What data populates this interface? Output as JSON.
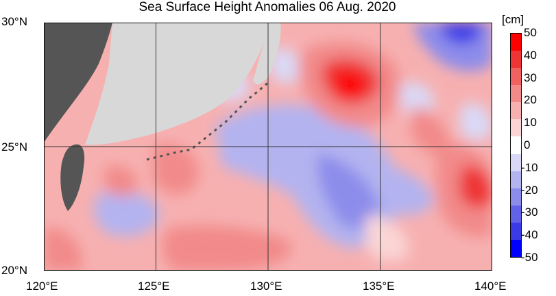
{
  "title": "Sea Surface Height Anomalies  06 Aug. 2020",
  "map": {
    "lat_labels": [
      "30°N",
      "25°N",
      "20°N"
    ],
    "lon_labels": [
      "120°E",
      "125°E",
      "130°E",
      "135°E",
      "140°E"
    ],
    "lat_range": [
      20,
      30
    ],
    "lon_range": [
      120,
      140
    ],
    "land_color": "#d8d8d8",
    "coast_color": "#555555"
  },
  "colorbar": {
    "unit": "[cm]",
    "labels": [
      "50",
      "40",
      "30",
      "20",
      "10",
      "0",
      "-10",
      "-20",
      "-30",
      "-40",
      "-50"
    ],
    "colors": [
      "#ff0000",
      "#ee3434",
      "#f06262",
      "#f28a8a",
      "#f7b0b0",
      "#fbd5d5",
      "#ffffff",
      "#d9d9f7",
      "#b3b3f0",
      "#8c8ceb",
      "#6262e8",
      "#3a3ae8",
      "#0000ff"
    ]
  }
}
